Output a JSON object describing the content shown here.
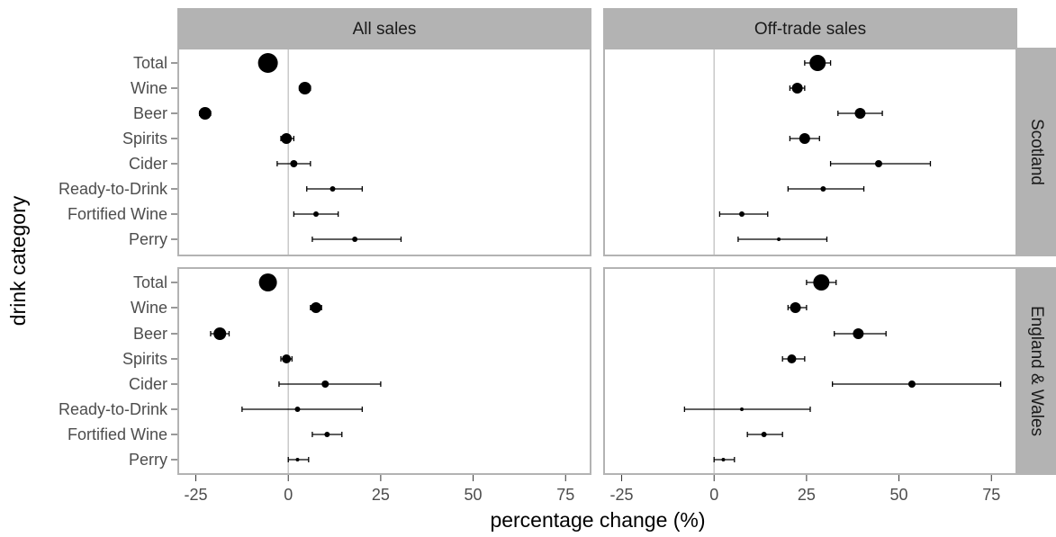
{
  "chart_data": {
    "type": "scatter",
    "subtype": "dot-and-whisker",
    "xlabel": "percentage change (%)",
    "ylabel": "drink category",
    "xlim": [
      -30,
      82
    ],
    "x_ticks": [
      -25,
      0,
      25,
      50,
      75
    ],
    "x_tick_labels": [
      "-25",
      "0",
      "25",
      "50",
      "75"
    ],
    "reference_line_x": 0,
    "categories": [
      "Total",
      "Wine",
      "Beer",
      "Spirits",
      "Cider",
      "Ready-to-Drink",
      "Fortified Wine",
      "Perry"
    ],
    "columns": [
      "All sales",
      "Off-trade sales"
    ],
    "rows": [
      "Scotland",
      "England & Wales"
    ],
    "panels": [
      {
        "column": "All sales",
        "row": "Scotland",
        "points": [
          {
            "category": "Total",
            "value": -5.5,
            "lower": -6.5,
            "upper": -4.5,
            "size": 11
          },
          {
            "category": "Wine",
            "value": 4.5,
            "lower": 3.0,
            "upper": 6.0,
            "size": 7
          },
          {
            "category": "Beer",
            "value": -22.5,
            "lower": -24.0,
            "upper": -21.0,
            "size": 7
          },
          {
            "category": "Spirits",
            "value": -0.5,
            "lower": -2.0,
            "upper": 1.5,
            "size": 6
          },
          {
            "category": "Cider",
            "value": 1.5,
            "lower": -3.0,
            "upper": 6.0,
            "size": 4
          },
          {
            "category": "Ready-to-Drink",
            "value": 12.0,
            "lower": 5.0,
            "upper": 20.0,
            "size": 3
          },
          {
            "category": "Fortified Wine",
            "value": 7.5,
            "lower": 1.5,
            "upper": 13.5,
            "size": 3
          },
          {
            "category": "Perry",
            "value": 18.0,
            "lower": 6.5,
            "upper": 30.5,
            "size": 3
          }
        ]
      },
      {
        "column": "Off-trade sales",
        "row": "Scotland",
        "points": [
          {
            "category": "Total",
            "value": 28.0,
            "lower": 24.5,
            "upper": 31.5,
            "size": 9
          },
          {
            "category": "Wine",
            "value": 22.5,
            "lower": 20.5,
            "upper": 24.5,
            "size": 6
          },
          {
            "category": "Beer",
            "value": 39.5,
            "lower": 33.5,
            "upper": 45.5,
            "size": 6
          },
          {
            "category": "Spirits",
            "value": 24.5,
            "lower": 20.5,
            "upper": 28.5,
            "size": 6
          },
          {
            "category": "Cider",
            "value": 44.5,
            "lower": 31.5,
            "upper": 58.5,
            "size": 4
          },
          {
            "category": "Ready-to-Drink",
            "value": 29.5,
            "lower": 20.0,
            "upper": 40.5,
            "size": 3
          },
          {
            "category": "Fortified Wine",
            "value": 7.5,
            "lower": 1.5,
            "upper": 14.5,
            "size": 3
          },
          {
            "category": "Perry",
            "value": 17.5,
            "lower": 6.5,
            "upper": 30.5,
            "size": 2
          }
        ]
      },
      {
        "column": "All sales",
        "row": "England & Wales",
        "points": [
          {
            "category": "Total",
            "value": -5.5,
            "lower": -6.5,
            "upper": -4.5,
            "size": 10
          },
          {
            "category": "Wine",
            "value": 7.5,
            "lower": 6.0,
            "upper": 9.0,
            "size": 6
          },
          {
            "category": "Beer",
            "value": -18.5,
            "lower": -21.0,
            "upper": -16.0,
            "size": 7
          },
          {
            "category": "Spirits",
            "value": -0.5,
            "lower": -2.0,
            "upper": 1.0,
            "size": 5
          },
          {
            "category": "Cider",
            "value": 10.0,
            "lower": -2.5,
            "upper": 25.0,
            "size": 4
          },
          {
            "category": "Ready-to-Drink",
            "value": 2.5,
            "lower": -12.5,
            "upper": 20.0,
            "size": 3
          },
          {
            "category": "Fortified Wine",
            "value": 10.5,
            "lower": 6.5,
            "upper": 14.5,
            "size": 3
          },
          {
            "category": "Perry",
            "value": 2.5,
            "lower": 0.0,
            "upper": 5.5,
            "size": 2
          }
        ]
      },
      {
        "column": "Off-trade sales",
        "row": "England & Wales",
        "points": [
          {
            "category": "Total",
            "value": 29.0,
            "lower": 25.0,
            "upper": 33.0,
            "size": 9
          },
          {
            "category": "Wine",
            "value": 22.0,
            "lower": 20.0,
            "upper": 25.0,
            "size": 6
          },
          {
            "category": "Beer",
            "value": 39.0,
            "lower": 32.5,
            "upper": 46.5,
            "size": 6
          },
          {
            "category": "Spirits",
            "value": 21.0,
            "lower": 18.5,
            "upper": 24.5,
            "size": 5
          },
          {
            "category": "Cider",
            "value": 53.5,
            "lower": 32.0,
            "upper": 77.5,
            "size": 4
          },
          {
            "category": "Ready-to-Drink",
            "value": 7.5,
            "lower": -8.0,
            "upper": 26.0,
            "size": 2
          },
          {
            "category": "Fortified Wine",
            "value": 13.5,
            "lower": 9.0,
            "upper": 18.5,
            "size": 3
          },
          {
            "category": "Perry",
            "value": 2.5,
            "lower": 0.0,
            "upper": 5.5,
            "size": 2
          }
        ]
      }
    ],
    "grid": false,
    "legend": "none",
    "colors": {
      "strip_background": "#b3b3b3",
      "panel_border": "#b3b3b3",
      "reference_line": "#c8c8c8",
      "points": "#000000"
    }
  }
}
